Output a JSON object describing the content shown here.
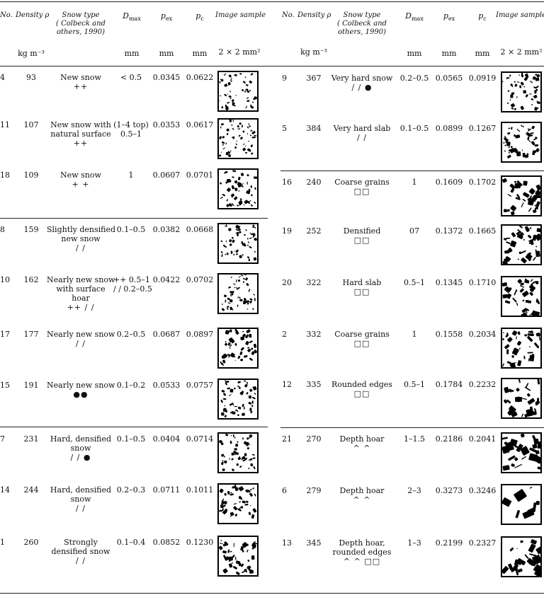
{
  "headers": {
    "no": "No.",
    "density": "Density ρ",
    "snow_type_l1": "Snow type",
    "snow_type_l2": "( Colbeck and",
    "snow_type_l3": "others, 1990)",
    "dmax": "D",
    "dmax_sub": "max",
    "pex": "p",
    "pex_sub": "ex",
    "pc": "p",
    "pc_sub": "c",
    "image": "Image sample",
    "unit_density": "kg m⁻³",
    "unit_dmax": "mm",
    "unit_pex": "mm",
    "unit_pc": "mm",
    "unit_image": "2 × 2 mm²"
  },
  "left_rows": [
    {
      "no": "4",
      "density": "93",
      "type": [
        "New snow"
      ],
      "symbol": "++",
      "dmax": [
        "< 0.5"
      ],
      "pex": "0.0345",
      "pc": "0.0622"
    },
    {
      "no": "11",
      "density": "107",
      "type": [
        "New snow with",
        "natural surface"
      ],
      "symbol": "++",
      "dmax": [
        "(1–4 top)",
        "0.5–1"
      ],
      "pex": "0.0353",
      "pc": "0.0617"
    },
    {
      "no": "18",
      "density": "109",
      "type": [
        "New snow"
      ],
      "symbol": "+ +",
      "dmax": [
        "1"
      ],
      "pex": "0.0607",
      "pc": "0.0701"
    },
    {
      "no": "8",
      "density": "159",
      "type": [
        "Slightly densified",
        "new snow"
      ],
      "symbol": "/ /",
      "dmax": [
        "0.1–0.5"
      ],
      "pex": "0.0382",
      "pc": "0.0668"
    },
    {
      "no": "10",
      "density": "162",
      "type": [
        "Nearly new snow",
        "with surface",
        "hoar"
      ],
      "symbol": "++ / /",
      "dmax": [
        "++ 0.5–1",
        "/ / 0.2–0.5"
      ],
      "pex": "0.0422",
      "pc": "0.0702"
    },
    {
      "no": "17",
      "density": "177",
      "type": [
        "Nearly new snow"
      ],
      "symbol": "/ /",
      "dmax": [
        "0.2–0.5"
      ],
      "pex": "0.0687",
      "pc": "0.0897"
    },
    {
      "no": "15",
      "density": "191",
      "type": [
        "Nearly new snow"
      ],
      "symbol": "●●",
      "dmax": [
        "0.1–0.2"
      ],
      "pex": "0.0533",
      "pc": "0.0757"
    },
    {
      "no": "7",
      "density": "231",
      "type": [
        "Hard, densified",
        "snow"
      ],
      "symbol": "/ / ●",
      "dmax": [
        "0.1–0.5"
      ],
      "pex": "0.0404",
      "pc": "0.0714"
    },
    {
      "no": "14",
      "density": "244",
      "type": [
        "Hard, densified",
        "snow"
      ],
      "symbol": "/ /",
      "dmax": [
        "0.2–0.3"
      ],
      "pex": "0.0711",
      "pc": "0.1011"
    },
    {
      "no": "1",
      "density": "260",
      "type": [
        "Strongly",
        "densified snow"
      ],
      "symbol": "/ /",
      "dmax": [
        "0.1–0.4"
      ],
      "pex": "0.0852",
      "pc": "0.1230"
    }
  ],
  "right_rows": [
    {
      "no": "9",
      "density": "367",
      "type": [
        "Very hard snow"
      ],
      "symbol": "/ / ●",
      "dmax": [
        "0.2–0.5"
      ],
      "pex": "0.0565",
      "pc": "0.0919"
    },
    {
      "no": "5",
      "density": "384",
      "type": [
        "Very hard slab"
      ],
      "symbol": "/ /",
      "dmax": [
        "0.1–0.5"
      ],
      "pex": "0.0899",
      "pc": "0.1267"
    },
    {
      "no": "16",
      "density": "240",
      "type": [
        "Coarse grains"
      ],
      "symbol": "□□",
      "dmax": [
        "1"
      ],
      "pex": "0.1609",
      "pc": "0.1702"
    },
    {
      "no": "19",
      "density": "252",
      "type": [
        "Densified"
      ],
      "symbol": "□□",
      "dmax": [
        "07"
      ],
      "pex": "0.1372",
      "pc": "0.1665"
    },
    {
      "no": "20",
      "density": "322",
      "type": [
        "Hard slab"
      ],
      "symbol": "□□",
      "dmax": [
        "0.5–1"
      ],
      "pex": "0.1345",
      "pc": "0.1710"
    },
    {
      "no": "2",
      "density": "332",
      "type": [
        "Coarse grains"
      ],
      "symbol": "□□",
      "dmax": [
        "1"
      ],
      "pex": "0.1558",
      "pc": "0.2034"
    },
    {
      "no": "12",
      "density": "335",
      "type": [
        "Rounded edges"
      ],
      "symbol": "□□",
      "dmax": [
        "0.5–1"
      ],
      "pex": "0.1784",
      "pc": "0.2232"
    },
    {
      "no": "21",
      "density": "270",
      "type": [
        "Depth hoar"
      ],
      "symbol": "^  ^",
      "dmax": [
        "1–1.5"
      ],
      "pex": "0.2186",
      "pc": "0.2041"
    },
    {
      "no": "6",
      "density": "279",
      "type": [
        "Depth hoar"
      ],
      "symbol": "^  ^",
      "dmax": [
        "2–3"
      ],
      "pex": "0.3273",
      "pc": "0.3246"
    },
    {
      "no": "13",
      "density": "345",
      "type": [
        "Depth hoar,",
        "rounded edges"
      ],
      "symbol": "^  ^ □□",
      "dmax": [
        "1–3"
      ],
      "pex": "0.2199",
      "pc": "0.2327"
    }
  ]
}
